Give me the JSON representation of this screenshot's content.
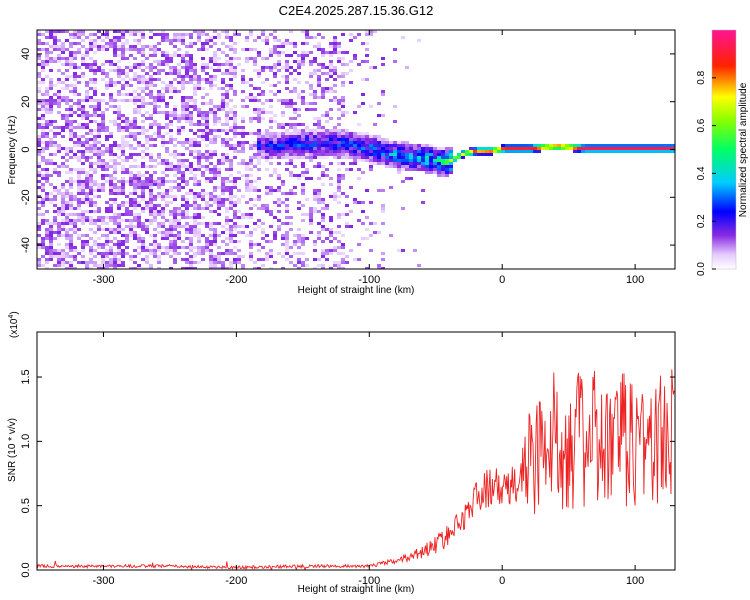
{
  "chart_data": [
    {
      "type": "heatmap",
      "title": "C2E4.2025.287.15.36.G12",
      "xlabel": "Height of straight line (km)",
      "ylabel": "Frequency (Hz)",
      "xlim": [
        -350,
        130
      ],
      "ylim": [
        -50,
        50
      ],
      "xticks": [
        -300,
        -200,
        -100,
        0,
        100
      ],
      "yticks": [
        -40,
        -20,
        0,
        20,
        40
      ],
      "colorbar": {
        "label": "Normalized spectral amplitude",
        "range": [
          0,
          1
        ],
        "ticks": [
          "0.0",
          "0.2",
          "0.4",
          "0.6",
          "0.8"
        ],
        "colormap": [
          "#ffffff",
          "#8a2be2",
          "#0000ff",
          "#00ffff",
          "#00ff00",
          "#ffff00",
          "#ff0000",
          "#ff1493"
        ]
      },
      "ridge": {
        "x": [
          -180,
          -150,
          -120,
          -100,
          -80,
          -60,
          -45,
          -40,
          -30,
          -20,
          -10,
          0,
          20,
          40,
          60,
          80,
          100,
          130
        ],
        "frequency": [
          2,
          3,
          3,
          1,
          -2,
          -3,
          -5,
          -4,
          -1,
          0,
          0,
          1,
          1,
          2,
          1,
          1,
          1,
          1
        ],
        "amplitude": [
          0.3,
          0.35,
          0.35,
          0.4,
          0.45,
          0.5,
          0.6,
          0.7,
          0.8,
          0.85,
          0.9,
          0.9,
          0.92,
          0.95,
          0.95,
          0.95,
          0.95,
          0.95
        ]
      }
    },
    {
      "type": "line",
      "xlabel": "Height of straight line (km)",
      "ylabel": "SNR (10 * v/v)",
      "scale_label": "(x10",
      "scale_exp": "4",
      "xlim": [
        -350,
        130
      ],
      "ylim": [
        0,
        1.85
      ],
      "xticks": [
        -300,
        -200,
        -100,
        0,
        100
      ],
      "yticks": [
        "0.0",
        "0.5",
        "1.0",
        "1.5"
      ],
      "series": [
        {
          "name": "SNR",
          "color": "#ee2222",
          "x": [
            -350,
            -300,
            -250,
            -200,
            -150,
            -100,
            -80,
            -60,
            -50,
            -40,
            -30,
            -20,
            -10,
            0,
            10,
            20,
            30,
            40,
            50,
            60,
            70,
            80,
            90,
            100,
            110,
            120,
            130
          ],
          "y": [
            0.03,
            0.03,
            0.03,
            0.02,
            0.03,
            0.03,
            0.07,
            0.14,
            0.2,
            0.28,
            0.4,
            0.55,
            0.65,
            0.62,
            0.65,
            0.85,
            0.95,
            1.0,
            1.05,
            1.0,
            1.0,
            0.95,
            1.0,
            1.02,
            1.0,
            1.0,
            1.05
          ]
        }
      ]
    }
  ]
}
